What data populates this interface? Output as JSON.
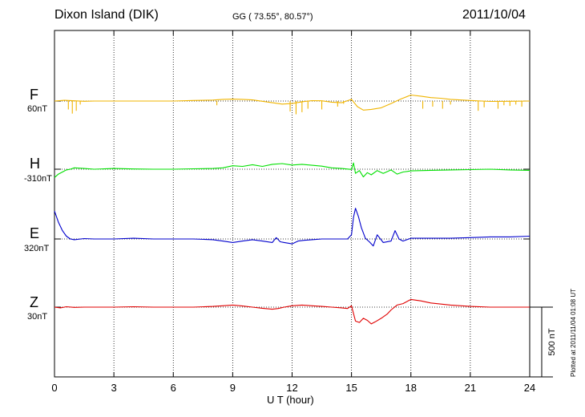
{
  "header": {
    "station": "Dixon Island (DIK)",
    "coords": "GG ( 73.55°,  80.57°)",
    "date": "2011/10/04"
  },
  "footer": {
    "plotted": "Plotted at 2011/11/04 01:08 UT"
  },
  "scale_bar": {
    "label": "500 nT",
    "nT": 500
  },
  "colors": {
    "F": "#f0b400",
    "H": "#00e000",
    "E": "#0000cc",
    "Z": "#e00000"
  },
  "chart_data": {
    "type": "line",
    "title": "Dixon Island (DIK)",
    "xlabel": "U T (hour)",
    "ylabel": "",
    "xlim": [
      0,
      24
    ],
    "xticks": [
      "0",
      "3",
      "6",
      "9",
      "12",
      "15",
      "18",
      "21",
      "24"
    ],
    "grid": true,
    "scale_nT": 500,
    "series": [
      {
        "name": "F",
        "baseline": "60nT",
        "x": [
          0,
          0.5,
          1,
          1.5,
          2,
          3,
          4,
          5,
          6,
          7,
          8,
          8.5,
          9,
          9.5,
          10,
          11,
          11.5,
          12,
          12.5,
          13,
          13.5,
          14,
          14.5,
          15,
          15.3,
          15.6,
          16,
          16.5,
          17,
          17.5,
          18,
          18.5,
          19,
          19.5,
          20,
          21,
          22,
          23,
          24
        ],
        "values": [
          0,
          5,
          2,
          -2,
          0,
          0,
          0,
          0,
          0,
          4,
          7,
          12,
          14,
          12,
          8,
          -12,
          -22,
          -18,
          -5,
          3,
          2,
          -8,
          -12,
          12,
          -40,
          -65,
          -60,
          -48,
          -18,
          15,
          43,
          35,
          25,
          20,
          12,
          4,
          -3,
          -2,
          0
        ],
        "spikes": [
          [
            0.7,
            -60
          ],
          [
            0.9,
            -90
          ],
          [
            1.1,
            -70
          ],
          [
            1.3,
            -25
          ],
          [
            8.2,
            -30
          ],
          [
            11.9,
            -75
          ],
          [
            12.2,
            -95
          ],
          [
            12.5,
            -80
          ],
          [
            12.8,
            -55
          ],
          [
            13.5,
            -60
          ],
          [
            14.3,
            -40
          ],
          [
            14.6,
            -20
          ],
          [
            18.6,
            -55
          ],
          [
            19.1,
            -40
          ],
          [
            19.6,
            -55
          ],
          [
            20,
            -25
          ],
          [
            21.4,
            -70
          ],
          [
            21.7,
            -45
          ],
          [
            22.4,
            -55
          ],
          [
            22.7,
            -30
          ],
          [
            23,
            -35
          ],
          [
            23.3,
            -25
          ],
          [
            23.6,
            -40
          ]
        ]
      },
      {
        "name": "H",
        "baseline": "-310nT",
        "x": [
          0,
          0.2,
          0.4,
          0.6,
          0.8,
          1,
          1.5,
          2,
          3,
          4,
          5,
          6,
          7,
          8,
          8.5,
          9,
          9.5,
          10,
          10.5,
          11,
          11.5,
          12,
          12.5,
          13,
          13.5,
          14,
          14.5,
          15,
          15.1,
          15.2,
          15.4,
          15.6,
          15.8,
          16,
          16.3,
          16.6,
          17,
          17.3,
          17.6,
          18,
          19,
          20,
          21,
          22,
          23,
          24
        ],
        "values": [
          -60,
          -35,
          -20,
          -5,
          0,
          10,
          5,
          0,
          5,
          2,
          0,
          0,
          3,
          5,
          10,
          25,
          20,
          32,
          20,
          35,
          40,
          30,
          35,
          28,
          22,
          10,
          5,
          -2,
          45,
          -30,
          -10,
          -55,
          -25,
          -40,
          -10,
          -30,
          -5,
          -35,
          -20,
          -12,
          -8,
          -5,
          -3,
          0,
          -5,
          -8
        ]
      },
      {
        "name": "E",
        "baseline": "320nT",
        "x": [
          0,
          0.2,
          0.4,
          0.6,
          0.8,
          1,
          1.5,
          2,
          3,
          4,
          5,
          6,
          7,
          8,
          8.5,
          9,
          9.5,
          10,
          10.5,
          11,
          11.2,
          11.4,
          11.6,
          12,
          12.3,
          12.6,
          13,
          13.5,
          14,
          14.5,
          14.8,
          15,
          15.1,
          15.2,
          15.35,
          15.5,
          15.7,
          15.9,
          16.1,
          16.3,
          16.6,
          17,
          17.2,
          17.4,
          17.6,
          18,
          19,
          20,
          21,
          22,
          23,
          24
        ],
        "values": [
          200,
          120,
          60,
          20,
          0,
          -5,
          3,
          0,
          0,
          5,
          0,
          0,
          0,
          -5,
          -15,
          -25,
          -15,
          -5,
          -15,
          -25,
          10,
          -20,
          -25,
          -35,
          -15,
          -10,
          -5,
          0,
          0,
          0,
          0,
          30,
          155,
          220,
          160,
          80,
          5,
          -20,
          -50,
          30,
          -25,
          -15,
          60,
          0,
          -15,
          5,
          5,
          5,
          10,
          15,
          15,
          20
        ]
      },
      {
        "name": "Z",
        "baseline": "30nT",
        "x": [
          0,
          0.3,
          0.6,
          1,
          1.5,
          2,
          3,
          4,
          5,
          6,
          7,
          8,
          8.5,
          9,
          9.5,
          10,
          10.5,
          11,
          11.3,
          11.6,
          12,
          12.5,
          13,
          13.5,
          14,
          14.5,
          14.8,
          15,
          15.2,
          15.4,
          15.6,
          15.8,
          16,
          16.2,
          16.5,
          16.8,
          17,
          17.3,
          17.6,
          18,
          18.5,
          19,
          20,
          21,
          22,
          23,
          24
        ],
        "values": [
          0,
          -5,
          3,
          -2,
          0,
          0,
          0,
          3,
          0,
          0,
          0,
          5,
          10,
          15,
          8,
          0,
          -8,
          -15,
          -10,
          0,
          10,
          15,
          10,
          5,
          0,
          -5,
          -10,
          10,
          -100,
          -110,
          -80,
          -95,
          -120,
          -105,
          -80,
          -50,
          -20,
          15,
          25,
          55,
          45,
          30,
          15,
          5,
          0,
          0,
          0
        ]
      }
    ]
  }
}
